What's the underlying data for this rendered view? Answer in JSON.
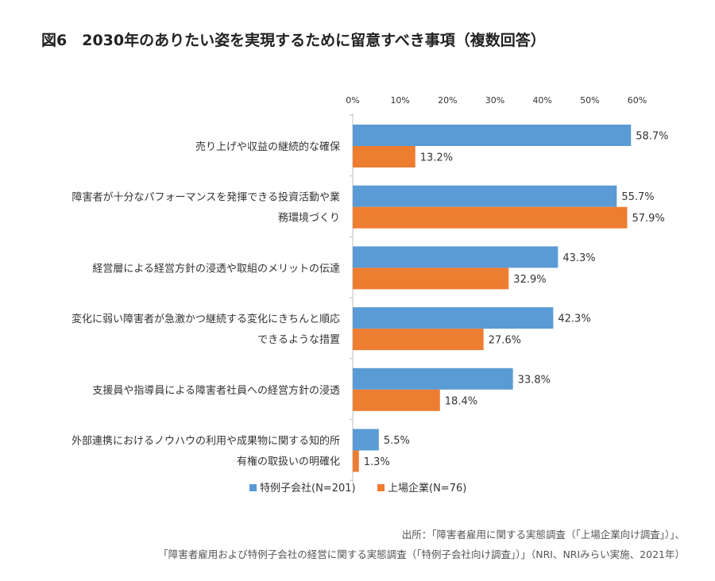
{
  "title": "図6　2030年のありたい姿を実現するために留意すべき事項（複数回答）",
  "source_lines": [
    "出所：「障害者雇用に関する実態調査（「上場企業向け調査」）」、",
    "「障害者雇用および特例子会社の経営に関する実態調査（「特例子会社向け調査」）」（NRI、NRIみらい実施、2021年）"
  ],
  "chart_data": {
    "type": "bar",
    "orientation": "horizontal",
    "categories": [
      [
        "売り上げや収益の継続的な確保"
      ],
      [
        "障害者が十分なパフォーマンスを発揮できる投資活動や業",
        "務環境づくり"
      ],
      [
        "経営層による経営方針の浸透や取組のメリットの伝達"
      ],
      [
        "変化に弱い障害者が急激かつ継続する変化にきちんと順応",
        "できるような措置"
      ],
      [
        "支援員や指導員による障害者社員への経営方針の浸透"
      ],
      [
        "外部連携におけるノウハウの利用や成果物に関する知的所",
        "有権の取扱いの明確化"
      ]
    ],
    "series": [
      {
        "name": "特例子会社(N=201)",
        "color": "#5B9BD5",
        "values": [
          58.7,
          55.7,
          43.3,
          42.3,
          33.8,
          5.5
        ],
        "labels": [
          "58.7%",
          "55.7%",
          "43.3%",
          "42.3%",
          "33.8%",
          "5.5%"
        ]
      },
      {
        "name": "上場企業(N=76)",
        "color": "#ED7D31",
        "values": [
          13.2,
          57.9,
          32.9,
          27.6,
          18.4,
          1.3
        ],
        "labels": [
          "13.2%",
          "57.9%",
          "32.9%",
          "27.6%",
          "18.4%",
          "1.3%"
        ]
      }
    ],
    "x_ticks": [
      "0%",
      "10%",
      "20%",
      "30%",
      "40%",
      "50%",
      "60%"
    ],
    "xlim": [
      0,
      60
    ],
    "axis_position": "top",
    "legend_position": "bottom",
    "grid": false
  }
}
